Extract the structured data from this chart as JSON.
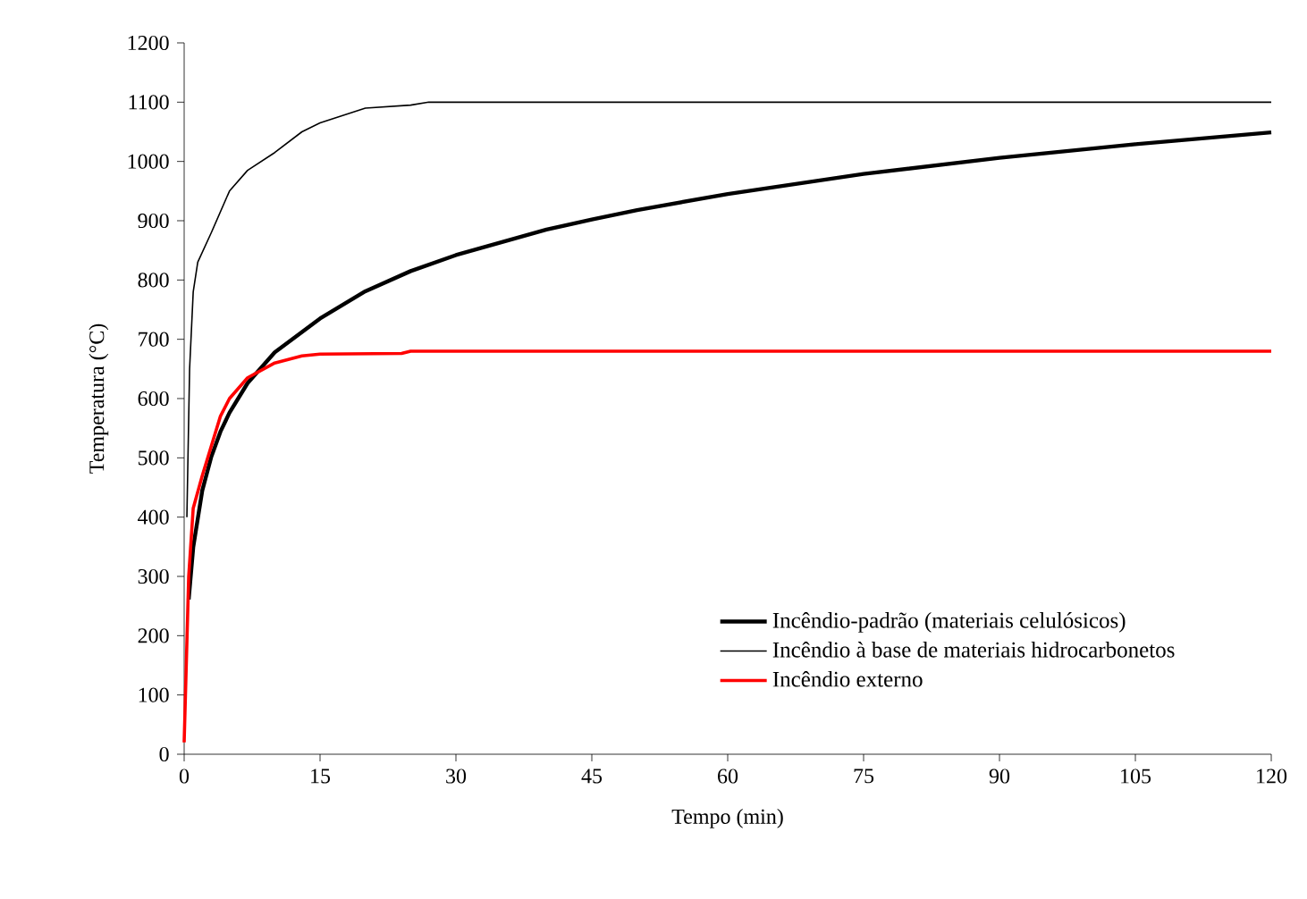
{
  "chart_data": {
    "type": "line",
    "xlabel": "Tempo (min)",
    "ylabel": "Temperatura (°C)",
    "xlim": [
      0,
      120
    ],
    "ylim": [
      0,
      1200
    ],
    "xticks": [
      0,
      15,
      30,
      45,
      60,
      75,
      90,
      105,
      120
    ],
    "yticks": [
      0,
      100,
      200,
      300,
      400,
      500,
      600,
      700,
      800,
      900,
      1000,
      1100,
      1200
    ],
    "legend": "bottom right",
    "series": [
      {
        "name": "Incêndio-padrão (materiais celulósicos)",
        "color": "#000000",
        "x": [
          0.5,
          1,
          2,
          3,
          4,
          5,
          7,
          10,
          15,
          20,
          25,
          30,
          40,
          45,
          50,
          60,
          75,
          90,
          105,
          120
        ],
        "values": [
          261,
          349,
          445,
          502,
          544,
          576,
          626,
          678,
          735,
          781,
          815,
          842,
          885,
          902,
          918,
          945,
          979,
          1006,
          1029,
          1049
        ]
      },
      {
        "name": "Incêndio à base de materiais hidrocarbonetos",
        "color": "#000000",
        "x": [
          0.3,
          0.6,
          1,
          1.5,
          3,
          5,
          7,
          10,
          13,
          15,
          20,
          25,
          27,
          120
        ],
        "values": [
          400,
          650,
          780,
          830,
          880,
          950,
          985,
          1015,
          1050,
          1065,
          1090,
          1095,
          1100,
          1100
        ]
      },
      {
        "name": "Incêndio externo",
        "color": "#ff0000",
        "x": [
          0,
          0.5,
          1,
          2,
          3,
          4,
          5,
          7,
          10,
          13,
          15,
          24,
          25,
          120
        ],
        "values": [
          20,
          300,
          415,
          470,
          520,
          570,
          600,
          635,
          660,
          672,
          675,
          676,
          680,
          680
        ]
      }
    ]
  }
}
